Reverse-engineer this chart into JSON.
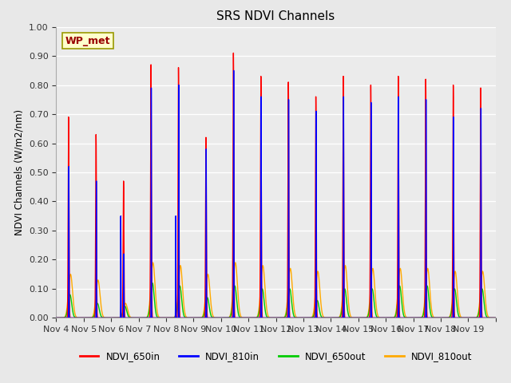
{
  "title": "SRS NDVI Channels",
  "ylabel": "NDVI Channels (W/m2/nm)",
  "xlabel": "",
  "ylim": [
    0.0,
    1.0
  ],
  "yticks": [
    0.0,
    0.1,
    0.2,
    0.3,
    0.4,
    0.5,
    0.6,
    0.7,
    0.8,
    0.9,
    1.0
  ],
  "background_color": "#e8e8e8",
  "plot_bg_color": "#ebebeb",
  "annotation_text": "WP_met",
  "annotation_bg": "#ffffcc",
  "annotation_border": "#999900",
  "colors": {
    "NDVI_650in": "#ff0000",
    "NDVI_810in": "#0000ff",
    "NDVI_650out": "#00cc00",
    "NDVI_810out": "#ffaa00"
  },
  "xtick_labels": [
    "Nov 4",
    "Nov 5",
    "Nov 6",
    "Nov 7",
    "Nov 8",
    "Nov 9",
    "Nov 10",
    "Nov 11",
    "Nov 12",
    "Nov 13",
    "Nov 14",
    "Nov 15",
    "Nov 16",
    "Nov 17",
    "Nov 18",
    "Nov 19"
  ],
  "spike_peaks_650in": [
    0.69,
    0.63,
    0.47,
    0.87,
    0.86,
    0.62,
    0.91,
    0.83,
    0.81,
    0.76,
    0.83,
    0.8,
    0.83,
    0.82,
    0.8,
    0.79
  ],
  "spike_peaks_810in": [
    0.52,
    0.47,
    0.22,
    0.79,
    0.8,
    0.58,
    0.85,
    0.76,
    0.75,
    0.71,
    0.76,
    0.74,
    0.76,
    0.75,
    0.69,
    0.72
  ],
  "spike_peaks_650out": [
    0.08,
    0.05,
    0.04,
    0.12,
    0.11,
    0.07,
    0.11,
    0.1,
    0.1,
    0.06,
    0.1,
    0.1,
    0.11,
    0.11,
    0.1,
    0.1
  ],
  "spike_peaks_810out": [
    0.15,
    0.13,
    0.05,
    0.19,
    0.18,
    0.15,
    0.19,
    0.18,
    0.17,
    0.16,
    0.18,
    0.17,
    0.17,
    0.17,
    0.16,
    0.16
  ],
  "spike_810in_extra": [
    0.0,
    0.0,
    0.35,
    0.0,
    0.35,
    0.0,
    0.0,
    0.0,
    0.0,
    0.0,
    0.0,
    0.0,
    0.0,
    0.0,
    0.0,
    0.0
  ]
}
